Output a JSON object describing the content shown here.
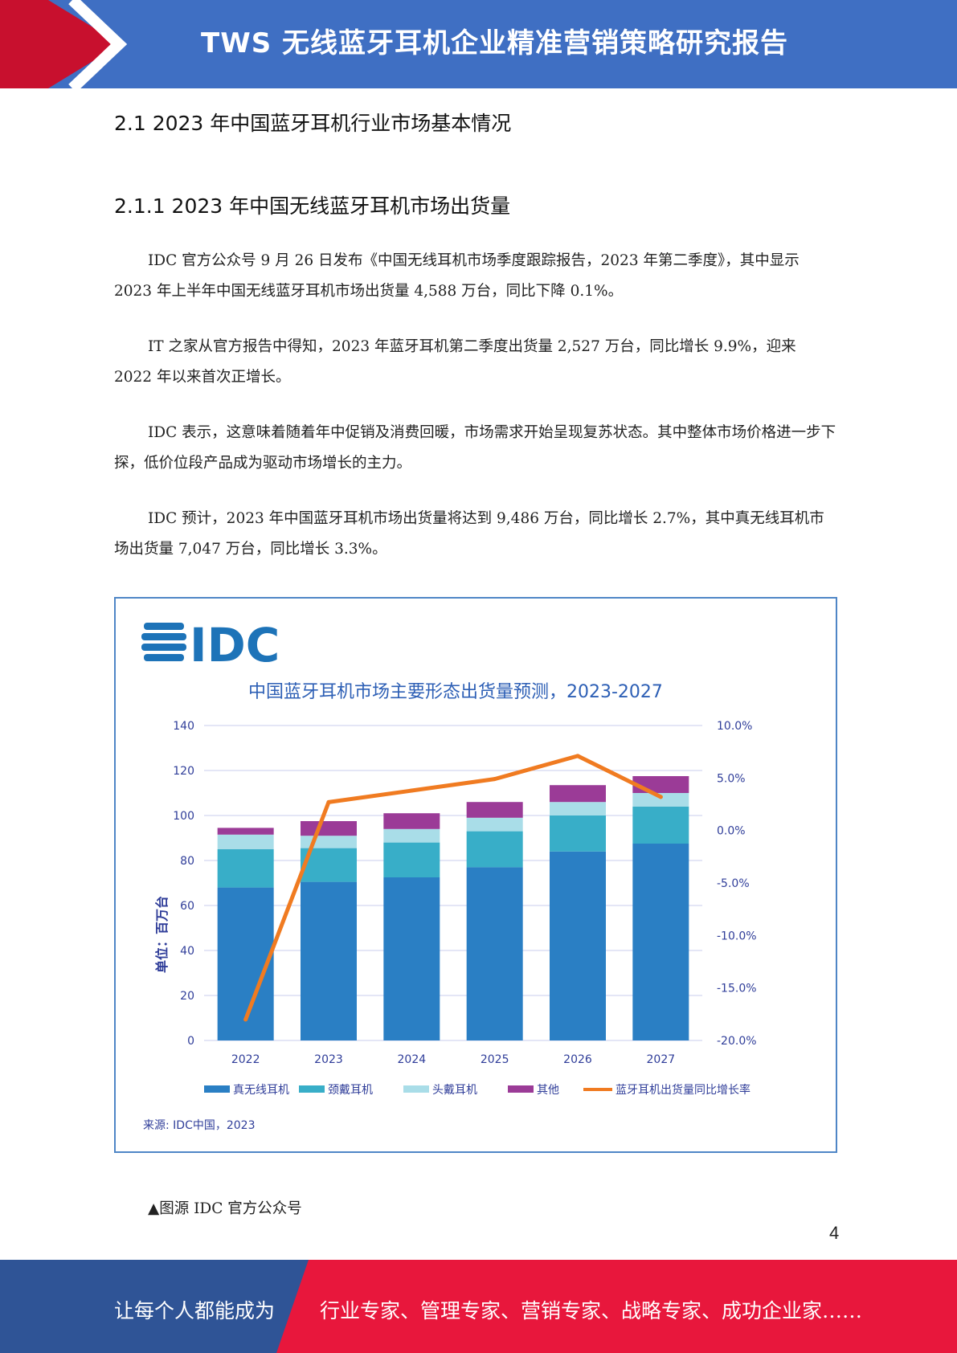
{
  "header": {
    "title": "TWS 无线蓝牙耳机企业精准营销策略研究报告",
    "colors": {
      "band": "#3f6fc3",
      "arrow": "#c8102e"
    }
  },
  "section": {
    "h1": "2.1 2023 年中国蓝牙耳机行业市场基本情况",
    "h2": "2.1.1 2023 年中国无线蓝牙耳机市场出货量"
  },
  "paragraphs": [
    "IDC 官方公众号 9 月 26 日发布《中国无线耳机市场季度跟踪报告，2023 年第二季度》，其中显示 2023 年上半年中国无线蓝牙耳机市场出货量 4,588 万台，同比下降 0.1%。",
    "IT 之家从官方报告中得知，2023 年蓝牙耳机第二季度出货量 2,527 万台，同比增长 9.9%，迎来 2022 年以来首次正增长。",
    "IDC 表示，这意味着随着年中促销及消费回暖，市场需求开始呈现复苏状态。其中整体市场价格进一步下探，低价位段产品成为驱动市场增长的主力。",
    "IDC 预计，2023 年中国蓝牙耳机市场出货量将达到 9,486 万台，同比增长 2.7%，其中真无线耳机市场出货量 7,047 万台，同比增长 3.3%。"
  ],
  "chart": {
    "logo_text": "IDC",
    "source": "来源: IDC中国，2023"
  },
  "chart_data": {
    "type": "bar",
    "stacked": true,
    "title": "中国蓝牙耳机市场主要形态出货量预测，2023-2027",
    "ylabel": "单位：百万台",
    "ylim": [
      0,
      140
    ],
    "y_ticks": [
      0,
      20,
      40,
      60,
      80,
      100,
      120,
      140
    ],
    "y2lim": [
      -20,
      10
    ],
    "y2_ticks": [
      "10.0%",
      "5.0%",
      "0.0%",
      "-5.0%",
      "-10.0%",
      "-15.0%",
      "-20.0%"
    ],
    "y2_tick_values": [
      10,
      5,
      0,
      -5,
      -10,
      -15,
      -20
    ],
    "categories": [
      "2022",
      "2023",
      "2024",
      "2025",
      "2026",
      "2027"
    ],
    "series": [
      {
        "name": "真无线耳机",
        "color": "#2a7fc4",
        "values": [
          68,
          70.5,
          72.5,
          77,
          84,
          87.5
        ]
      },
      {
        "name": "颈戴耳机",
        "color": "#38aec8",
        "values": [
          17,
          15,
          15.5,
          16,
          16,
          16.5
        ]
      },
      {
        "name": "头戴耳机",
        "color": "#a9dde8",
        "values": [
          6.5,
          5.5,
          6,
          6,
          6,
          6
        ]
      },
      {
        "name": "其他",
        "color": "#9b3b97",
        "values": [
          3,
          6.5,
          7,
          7,
          7.5,
          7.5
        ]
      }
    ],
    "line_series": {
      "name": "蓝牙耳机出货量同比增长率",
      "color": "#f07b21",
      "axis": "right",
      "values": [
        -18,
        2.7,
        3.8,
        4.9,
        7.1,
        3.2
      ]
    },
    "grid": true,
    "legend": "bottom"
  },
  "caption": "▲图源 IDC 官方公众号",
  "page_number": "4",
  "footer": {
    "left": "让每个人都能成为",
    "right": "行业专家、管理专家、营销专家、战略专家、成功企业家……",
    "colors": {
      "left": "#2f5496",
      "right": "#e8173c"
    }
  }
}
